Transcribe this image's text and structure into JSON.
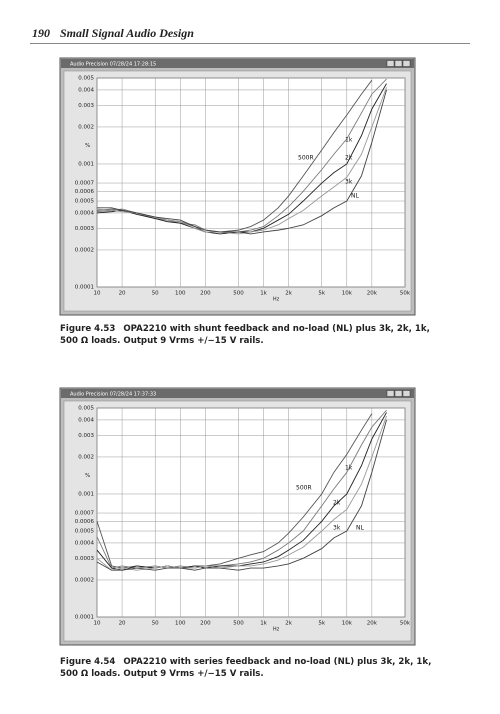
{
  "header": {
    "page_number": "190",
    "running_title": "Small Signal Audio Design"
  },
  "chart_data": [
    {
      "type": "line",
      "window_title": "Audio Precision  07/28/24 17:28:15",
      "y_label": "%",
      "x_label": "Hz",
      "log_x": true,
      "log_y": true,
      "grid": true,
      "xlim": [
        10,
        50000
      ],
      "ylim": [
        0.0001,
        0.005
      ],
      "xticks": [
        10,
        20,
        50,
        100,
        200,
        500,
        {
          "value": 1000,
          "label": "1k"
        },
        {
          "value": 2000,
          "label": "2k"
        },
        {
          "value": 5000,
          "label": "5k"
        },
        {
          "value": 10000,
          "label": "10k"
        },
        {
          "value": 20000,
          "label": "20k"
        },
        {
          "value": 50000,
          "label": "50k"
        }
      ],
      "yticks": [
        0.005,
        0.004,
        0.003,
        0.002,
        0.001,
        0.0007,
        0.0006,
        0.0005,
        0.0004,
        0.0003,
        0.0002,
        0.0001
      ],
      "x": [
        10,
        15,
        20,
        30,
        50,
        70,
        100,
        150,
        200,
        300,
        500,
        700,
        1000,
        1500,
        2000,
        3000,
        5000,
        7000,
        10000,
        15000,
        20000,
        30000
      ],
      "series": [
        {
          "name": "500R",
          "color": "#555555",
          "values": [
            0.00042,
            0.00043,
            0.00042,
            0.0004,
            0.00037,
            0.00035,
            0.00034,
            0.00031,
            0.00028,
            0.00028,
            0.00029,
            0.00031,
            0.00035,
            0.00044,
            0.00055,
            0.0008,
            0.0013,
            0.0018,
            0.0025,
            0.0037,
            0.0048,
            null
          ]
        },
        {
          "name": "1k",
          "color": "#7a7a7a",
          "values": [
            0.00041,
            0.00042,
            0.00043,
            0.0004,
            0.00036,
            0.00035,
            0.00033,
            0.00032,
            0.00029,
            0.00028,
            0.00028,
            0.00029,
            0.00031,
            0.00038,
            0.00045,
            0.0006,
            0.0009,
            0.0012,
            0.0016,
            0.0026,
            0.0037,
            0.0049
          ]
        },
        {
          "name": "2k",
          "color": "#222222",
          "values": [
            0.0004,
            0.00041,
            0.00042,
            0.00039,
            0.00036,
            0.00034,
            0.00033,
            0.0003,
            0.00028,
            0.00027,
            0.00028,
            0.00028,
            0.0003,
            0.00035,
            0.00039,
            0.0005,
            0.0007,
            0.00085,
            0.001,
            0.0017,
            0.0028,
            0.0045
          ]
        },
        {
          "name": "3k",
          "color": "#999999",
          "values": [
            0.00043,
            0.00042,
            0.00041,
            0.0004,
            0.00037,
            0.00035,
            0.00034,
            0.0003,
            0.00028,
            0.00028,
            0.00027,
            0.00028,
            0.00029,
            0.00032,
            0.00036,
            0.00042,
            0.00055,
            0.00065,
            0.00078,
            0.0012,
            0.002,
            0.0042
          ]
        },
        {
          "name": "NL",
          "color": "#444444",
          "values": [
            0.00044,
            0.00044,
            0.00042,
            0.0004,
            0.00037,
            0.00036,
            0.00035,
            0.00031,
            0.00029,
            0.00028,
            0.00028,
            0.00027,
            0.00028,
            0.00029,
            0.0003,
            0.00032,
            0.00038,
            0.00044,
            0.0005,
            0.0008,
            0.0015,
            0.004
          ]
        }
      ]
    },
    {
      "type": "line",
      "window_title": "Audio Precision  07/28/24 17:37:33",
      "y_label": "%",
      "x_label": "Hz",
      "log_x": true,
      "log_y": true,
      "grid": true,
      "xlim": [
        10,
        50000
      ],
      "ylim": [
        0.0001,
        0.005
      ],
      "xticks": [
        10,
        20,
        50,
        100,
        200,
        500,
        {
          "value": 1000,
          "label": "1k"
        },
        {
          "value": 2000,
          "label": "2k"
        },
        {
          "value": 5000,
          "label": "5k"
        },
        {
          "value": 10000,
          "label": "10k"
        },
        {
          "value": 20000,
          "label": "20k"
        },
        {
          "value": 50000,
          "label": "50k"
        }
      ],
      "yticks": [
        0.005,
        0.004,
        0.003,
        0.002,
        0.001,
        0.0007,
        0.0006,
        0.0005,
        0.0004,
        0.0003,
        0.0002,
        0.0001
      ],
      "x": [
        10,
        15,
        20,
        30,
        50,
        70,
        100,
        150,
        200,
        300,
        500,
        700,
        1000,
        1500,
        2000,
        3000,
        5000,
        7000,
        10000,
        15000,
        20000,
        30000
      ],
      "series": [
        {
          "name": "500R",
          "color": "#555555",
          "values": [
            0.0006,
            0.00026,
            0.00025,
            0.00026,
            0.00025,
            0.00026,
            0.00025,
            0.00026,
            0.00026,
            0.00027,
            0.0003,
            0.00032,
            0.00034,
            0.0004,
            0.00048,
            0.00065,
            0.001,
            0.0015,
            0.0021,
            0.0033,
            0.0045,
            null
          ]
        },
        {
          "name": "1k",
          "color": "#7a7a7a",
          "values": [
            0.00045,
            0.00025,
            0.00026,
            0.00025,
            0.00026,
            0.00025,
            0.00026,
            0.00025,
            0.00026,
            0.00026,
            0.00027,
            0.00028,
            0.0003,
            0.00035,
            0.0004,
            0.0005,
            0.0008,
            0.0011,
            0.0015,
            0.0025,
            0.0035,
            0.0048
          ]
        },
        {
          "name": "2k",
          "color": "#222222",
          "values": [
            0.00035,
            0.00025,
            0.00024,
            0.00026,
            0.00025,
            0.00026,
            0.00025,
            0.00026,
            0.00025,
            0.00026,
            0.00026,
            0.00027,
            0.00028,
            0.00031,
            0.00035,
            0.00042,
            0.0006,
            0.0008,
            0.001,
            0.0017,
            0.0028,
            0.0046
          ]
        },
        {
          "name": "3k",
          "color": "#999999",
          "values": [
            0.0003,
            0.00024,
            0.00025,
            0.00024,
            0.00025,
            0.00026,
            0.00025,
            0.00025,
            0.00026,
            0.00025,
            0.00026,
            0.00026,
            0.00027,
            0.00029,
            0.00032,
            0.00037,
            0.0005,
            0.00062,
            0.00075,
            0.0012,
            0.002,
            0.0043
          ]
        },
        {
          "name": "NL",
          "color": "#444444",
          "values": [
            0.00028,
            0.00024,
            0.00024,
            0.00025,
            0.00024,
            0.00025,
            0.00025,
            0.00024,
            0.00025,
            0.00025,
            0.00024,
            0.00025,
            0.00025,
            0.00026,
            0.00027,
            0.0003,
            0.00036,
            0.00044,
            0.0005,
            0.0008,
            0.0015,
            0.004
          ]
        }
      ]
    }
  ],
  "captions": [
    {
      "label": "Figure 4.53",
      "text": "OPA2210 with shunt feedback and no-load (NL) plus 3k, 2k, 1k, 500 Ω loads. Output 9 Vrms +/−15 V rails."
    },
    {
      "label": "Figure 4.54",
      "text": "OPA2210 with series feedback and no-load (NL) plus 3k, 2k, 1k, 500 Ω loads. Output 9 Vrms +/−15 V rails."
    }
  ]
}
